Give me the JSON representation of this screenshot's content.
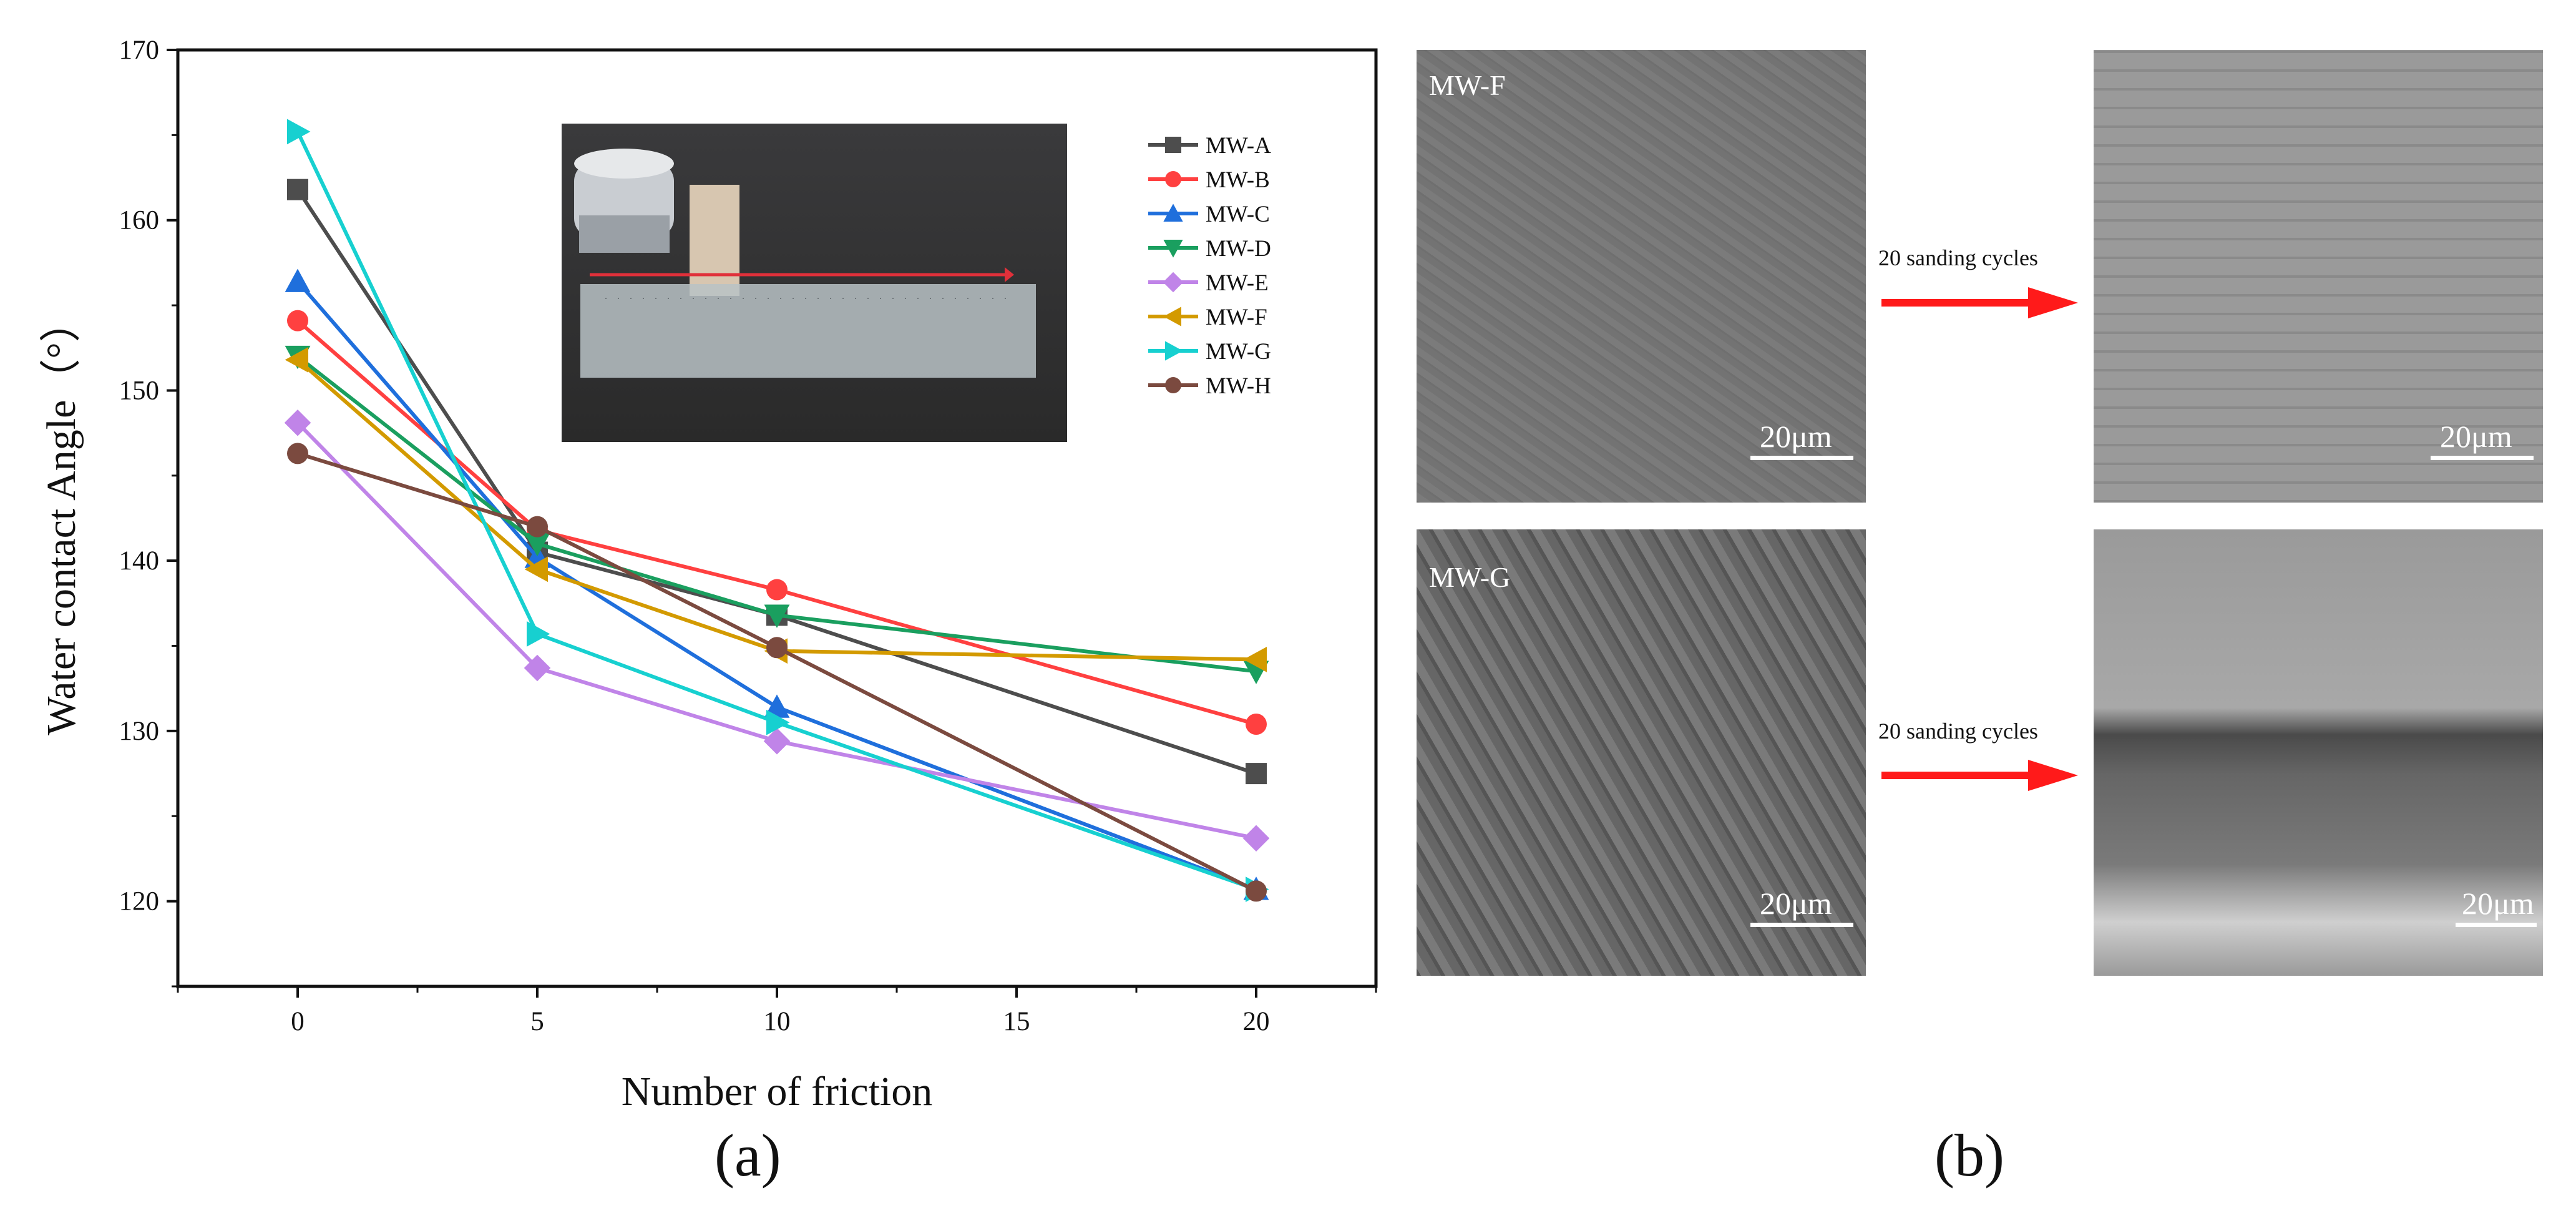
{
  "chart_data": {
    "type": "line",
    "xlabel": "Number of friction",
    "ylabel": "Water contact Angle（°）",
    "x": [
      0,
      5,
      10,
      20
    ],
    "xlim": [
      -2.5,
      22.5
    ],
    "ylim": [
      115,
      170
    ],
    "xticks": [
      0,
      5,
      10,
      15,
      20
    ],
    "yticks": [
      120,
      130,
      140,
      150,
      160,
      170
    ],
    "grid": false,
    "legend_position": "top-right",
    "series": [
      {
        "name": "MW-A",
        "color": "#4d4d4d",
        "marker": "square",
        "values": [
          161.8,
          140.5,
          136.8,
          127.5
        ]
      },
      {
        "name": "MW-B",
        "color": "#ff4040",
        "marker": "circle",
        "values": [
          154.1,
          141.8,
          138.3,
          130.4
        ]
      },
      {
        "name": "MW-C",
        "color": "#1f6fdc",
        "marker": "triangle-up",
        "values": [
          156.4,
          140.2,
          131.4,
          120.7
        ]
      },
      {
        "name": "MW-D",
        "color": "#1a9f5f",
        "marker": "triangle-down",
        "values": [
          152.0,
          141.0,
          136.8,
          133.5
        ]
      },
      {
        "name": "MW-E",
        "color": "#c084e8",
        "marker": "diamond",
        "values": [
          148.1,
          133.7,
          129.4,
          123.7
        ]
      },
      {
        "name": "MW-F",
        "color": "#d39a00",
        "marker": "triangle-left",
        "values": [
          151.8,
          139.5,
          134.7,
          134.2
        ]
      },
      {
        "name": "MW-G",
        "color": "#17d0d0",
        "marker": "triangle-right",
        "values": [
          165.2,
          135.7,
          130.5,
          120.7
        ]
      },
      {
        "name": "MW-H",
        "color": "#7b4a3f",
        "marker": "circle",
        "values": [
          146.3,
          142.0,
          134.9,
          120.6
        ]
      }
    ]
  },
  "captions": {
    "a": "(a)",
    "b": "(b)"
  },
  "sem_panel": {
    "row1_label": "MW-F",
    "row2_label": "MW-G",
    "scale_text": "20μm",
    "arrow_text": "20 sanding cycles",
    "arrow_color": "#ff1a1a"
  }
}
